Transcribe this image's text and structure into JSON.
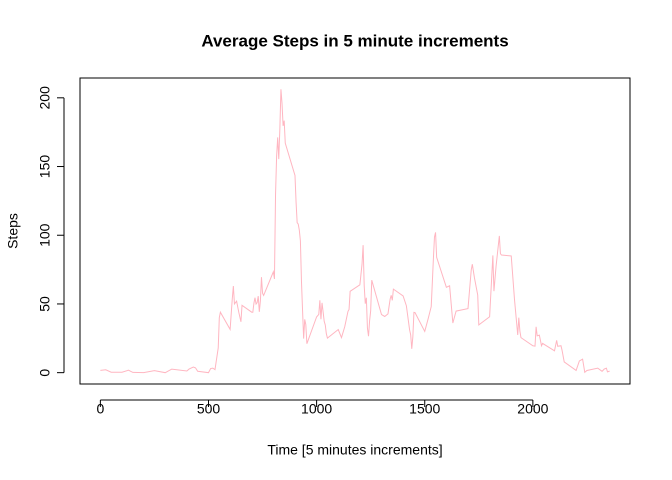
{
  "chart_data": {
    "type": "line",
    "title": "Average Steps in 5 minute increments",
    "xlabel": "Time [5 minutes increments]",
    "ylabel": "Steps",
    "x": [
      0,
      25,
      50,
      100,
      130,
      150,
      200,
      250,
      300,
      330,
      400,
      410,
      430,
      440,
      450,
      500,
      510,
      520,
      530,
      545,
      550,
      555,
      600,
      610,
      615,
      620,
      630,
      640,
      650,
      655,
      700,
      705,
      710,
      715,
      720,
      725,
      730,
      735,
      740,
      745,
      750,
      755,
      800,
      805,
      810,
      815,
      820,
      825,
      830,
      835,
      840,
      845,
      850,
      855,
      900,
      905,
      910,
      915,
      920,
      925,
      930,
      935,
      940,
      945,
      950,
      955,
      1000,
      1010,
      1015,
      1020,
      1025,
      1030,
      1035,
      1040,
      1045,
      1050,
      1100,
      1115,
      1130,
      1145,
      1150,
      1155,
      1200,
      1210,
      1215,
      1220,
      1225,
      1230,
      1235,
      1240,
      1245,
      1250,
      1255,
      1300,
      1315,
      1330,
      1340,
      1345,
      1350,
      1355,
      1400,
      1415,
      1430,
      1435,
      1440,
      1445,
      1450,
      1455,
      1500,
      1515,
      1530,
      1535,
      1540,
      1545,
      1550,
      1555,
      1600,
      1615,
      1630,
      1645,
      1700,
      1715,
      1720,
      1730,
      1745,
      1750,
      1800,
      1815,
      1820,
      1830,
      1845,
      1850,
      1855,
      1900,
      1915,
      1930,
      1935,
      1940,
      1945,
      2000,
      2010,
      2015,
      2020,
      2030,
      2040,
      2045,
      2100,
      2110,
      2115,
      2130,
      2135,
      2145,
      2200,
      2215,
      2230,
      2240,
      2250,
      2300,
      2320,
      2330,
      2340,
      2345,
      2355
    ],
    "series": [
      {
        "name": "Steps",
        "color": "#ffb6c1",
        "values": [
          1.7,
          2.1,
          0.3,
          0.3,
          1.8,
          0.2,
          0,
          1.5,
          0,
          2.6,
          1.2,
          2.6,
          4.1,
          3.5,
          1,
          0,
          3,
          3.3,
          2.2,
          18,
          40,
          44,
          31.5,
          53.8,
          63,
          50,
          52,
          44,
          37,
          49,
          44,
          44,
          50.5,
          54.5,
          49.9,
          50.9,
          55.7,
          44.3,
          52.3,
          69.5,
          57.8,
          56.2,
          73.4,
          68.2,
          129.4,
          157.5,
          171.2,
          155.4,
          177.3,
          206.2,
          195.9,
          179.6,
          183.4,
          167,
          143.5,
          124,
          109.1,
          108.1,
          103.7,
          95.9,
          66.2,
          45.2,
          24.8,
          38.8,
          35,
          21.1,
          40.6,
          42.4,
          52.7,
          38.9,
          50.8,
          44.3,
          37.4,
          34.7,
          28.3,
          25.1,
          31.4,
          25.5,
          33.4,
          44.6,
          46,
          59.2,
          63.9,
          78.9,
          92.8,
          63.4,
          50.2,
          54.5,
          32.4,
          26.5,
          37.7,
          45.1,
          67.3,
          42.3,
          40.9,
          42.8,
          53.5,
          56.3,
          52.6,
          60.8,
          55.8,
          48.7,
          31.1,
          27.5,
          17.3,
          26.1,
          43.9,
          43.7,
          30,
          38.8,
          48.1,
          65.3,
          82.9,
          98.7,
          102.1,
          84,
          62.1,
          63.2,
          36.1,
          44.8,
          46.6,
          74.7,
          78.9,
          68.9,
          56.5,
          34.8,
          40.7,
          85.3,
          59.3,
          77.7,
          99.5,
          86.6,
          85.6,
          84.9,
          53.4,
          27.4,
          40,
          30.2,
          25.5,
          19.6,
          19.3,
          33.4,
          26.8,
          27.3,
          19.6,
          21.3,
          15.9,
          23.5,
          19.2,
          19.6,
          16.3,
          7.8,
          1.6,
          8.5,
          9.8,
          0.3,
          1.6,
          3.3,
          1,
          2.6,
          3.3,
          0.6,
          1.1
        ]
      }
    ],
    "xlim": [
      -94.2,
      2449.2
    ],
    "ylim": [
      -8.25,
      214.42
    ],
    "xticks": [
      0,
      500,
      1000,
      1500,
      2000
    ],
    "yticks": [
      0,
      50,
      100,
      150,
      200
    ]
  }
}
